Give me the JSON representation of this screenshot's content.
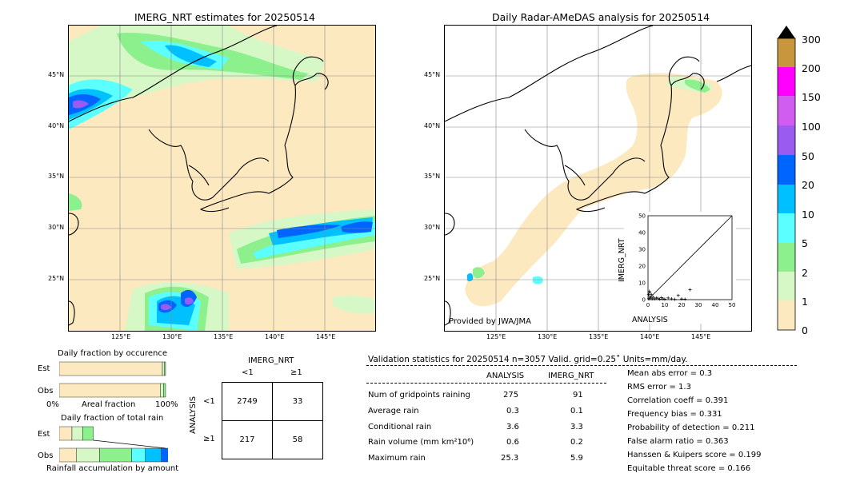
{
  "left_map": {
    "title": "IMERG_NRT estimates for 20250514",
    "lat_labels": [
      "45°N",
      "40°N",
      "35°N",
      "30°N",
      "25°N"
    ],
    "lon_labels": [
      "125°E",
      "130°E",
      "135°E",
      "140°E",
      "145°E"
    ]
  },
  "right_map": {
    "title": "Daily Radar-AMeDAS analysis for 20250514",
    "lat_labels": [
      "45°N",
      "40°N",
      "35°N",
      "30°N",
      "25°N"
    ],
    "lon_labels": [
      "125°E",
      "130°E",
      "135°E",
      "140°E",
      "145°E"
    ],
    "credit": "Provided by JWA/JMA"
  },
  "colorbar": {
    "labels": [
      "300",
      "200",
      "150",
      "100",
      "50",
      "20",
      "10",
      "5",
      "2",
      "1",
      "0"
    ],
    "colors": [
      "#000000",
      "#c8963c",
      "#ff00ff",
      "#d05cf0",
      "#9a5cf0",
      "#0064ff",
      "#00c0ff",
      "#5cffff",
      "#8cf08c",
      "#d6f7c6",
      "#fde9c0"
    ]
  },
  "scatter": {
    "xlabel": "ANALYSIS",
    "ylabel": "IMERG_NRT",
    "ticks": [
      "0",
      "10",
      "20",
      "30",
      "40",
      "50"
    ]
  },
  "chart_data": [
    {
      "type": "scatter",
      "xlabel": "ANALYSIS",
      "ylabel": "IMERG_NRT",
      "xlim": [
        0,
        50
      ],
      "ylim": [
        0,
        50
      ],
      "points": [
        [
          0.5,
          0.5
        ],
        [
          1,
          2
        ],
        [
          1.5,
          1
        ],
        [
          2,
          3
        ],
        [
          2.5,
          0.5
        ],
        [
          3,
          1.5
        ],
        [
          4,
          0.5
        ],
        [
          5,
          1
        ],
        [
          6,
          0.8
        ],
        [
          7,
          0.3
        ],
        [
          8,
          1.2
        ],
        [
          9,
          0.5
        ],
        [
          10,
          0.3
        ],
        [
          12,
          1
        ],
        [
          14,
          0.5
        ],
        [
          16,
          0.2
        ],
        [
          18,
          2.5
        ],
        [
          20,
          0.4
        ],
        [
          22,
          0.3
        ],
        [
          25,
          5.9
        ],
        [
          1,
          4
        ],
        [
          0.8,
          5
        ],
        [
          0.3,
          3
        ]
      ]
    },
    {
      "type": "bar",
      "title": "Daily fraction by occurence",
      "categories": [
        "Est",
        "Obs"
      ],
      "series": [
        {
          "values": [
            0.97,
            0.95
          ],
          "color": "#fde9c0"
        },
        {
          "values": [
            0.02,
            0.03
          ],
          "color": "#d6f7c6"
        },
        {
          "values": [
            0.01,
            0.02
          ],
          "color": "#8cf08c"
        }
      ]
    },
    {
      "type": "bar",
      "title": "Daily fraction of total rain",
      "categories": [
        "Est",
        "Obs"
      ],
      "series": [
        {
          "values": [
            0.12,
            0.16
          ],
          "color": "#fde9c0"
        },
        {
          "values": [
            0.1,
            0.22
          ],
          "color": "#d6f7c6"
        },
        {
          "values": [
            0.1,
            0.3
          ],
          "color": "#8cf08c"
        },
        {
          "values": [
            0.0,
            0.13
          ],
          "color": "#5cffff"
        },
        {
          "values": [
            0.0,
            0.15
          ],
          "color": "#00c0ff"
        },
        {
          "values": [
            0.0,
            0.07
          ],
          "color": "#0064ff"
        }
      ]
    }
  ],
  "bars": {
    "occ_title": "Daily fraction by occurence",
    "occ_axis_left": "0%",
    "occ_axis_mid": "Areal fraction",
    "occ_axis_right": "100%",
    "rain_title": "Daily fraction of total rain",
    "rain_axis": "Rainfall accumulation by amount",
    "est": "Est",
    "obs": "Obs"
  },
  "contingency": {
    "col_title": "IMERG_NRT",
    "col_lt": "<1",
    "col_ge": "≥1",
    "row_title": "ANALYSIS",
    "row_lt": "<1",
    "row_ge": "≥1",
    "c11": "2749",
    "c12": "33",
    "c21": "217",
    "c22": "58"
  },
  "validation": {
    "header": "Validation statistics for 20250514  n=3057 Valid. grid=0.25˚ Units=mm/day.",
    "col1": "ANALYSIS",
    "col2": "IMERG_NRT",
    "rows": [
      {
        "label": "Num of gridpoints raining",
        "a": "275",
        "b": "91"
      },
      {
        "label": "Average rain",
        "a": "0.3",
        "b": "0.1"
      },
      {
        "label": "Conditional rain",
        "a": "3.6",
        "b": "3.3"
      },
      {
        "label": "Rain volume (mm km²10⁶)",
        "a": "0.6",
        "b": "0.2"
      },
      {
        "label": "Maximum rain",
        "a": "25.3",
        "b": "5.9"
      }
    ],
    "scores": [
      "Mean abs error =    0.3",
      "RMS error =    1.3",
      "Correlation coeff =  0.391",
      "Frequency bias =  0.331",
      "Probability of detection =  0.211",
      "False alarm ratio =  0.363",
      "Hanssen & Kuipers score =  0.199",
      "Equitable threat score =  0.166"
    ]
  }
}
